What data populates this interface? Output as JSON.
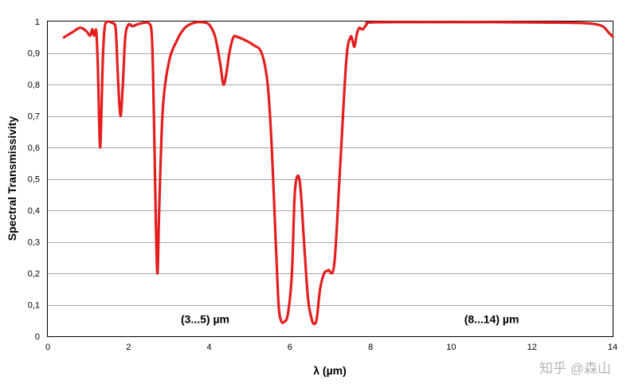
{
  "chart_data": {
    "type": "line",
    "title": "",
    "xlabel": "λ (µm)",
    "ylabel": "Spectral Transmissivity",
    "xlim": [
      0,
      14
    ],
    "ylim": [
      0,
      1
    ],
    "x_ticks": [
      0,
      2,
      4,
      6,
      8,
      10,
      12,
      14
    ],
    "x_tick_labels": [
      "0",
      "2",
      "4",
      "6",
      "8",
      "10",
      "12",
      "14"
    ],
    "y_ticks": [
      0,
      0.1,
      0.2,
      0.3,
      0.4,
      0.5,
      0.6,
      0.7,
      0.8,
      0.9,
      1
    ],
    "y_tick_labels": [
      "0",
      "0,1",
      "0,2",
      "0,3",
      "0,4",
      "0,5",
      "0,6",
      "0,7",
      "0,8",
      "0,9",
      "1"
    ],
    "grid": "horizontal",
    "line_color": "#e41e1e",
    "annotations": [
      {
        "text": "(3...5) µm",
        "x": 3.9,
        "y": 0.055
      },
      {
        "text": "(8...14) µm",
        "x": 11.0,
        "y": 0.055
      }
    ],
    "watermark": "知乎 @森山",
    "series": [
      {
        "x": [
          0.4,
          0.6,
          0.8,
          0.95,
          1.05,
          1.1,
          1.15,
          1.2,
          1.24,
          1.27,
          1.3,
          1.33,
          1.37,
          1.42,
          1.5,
          1.6,
          1.68,
          1.74,
          1.8,
          1.86,
          1.92,
          2.0,
          2.1,
          2.2,
          2.35,
          2.5,
          2.58,
          2.63,
          2.68,
          2.72,
          2.76,
          2.85,
          3.0,
          3.2,
          3.4,
          3.6,
          3.8,
          4.0,
          4.15,
          4.28,
          4.35,
          4.42,
          4.5,
          4.6,
          4.72,
          4.9,
          5.1,
          5.3,
          5.45,
          5.55,
          5.65,
          5.72,
          5.78,
          5.85,
          5.95,
          6.05,
          6.12,
          6.2,
          6.27,
          6.35,
          6.45,
          6.55,
          6.62,
          6.67,
          6.75,
          6.85,
          6.95,
          7.1,
          7.25,
          7.4,
          7.5,
          7.55,
          7.6,
          7.66,
          7.72,
          7.8,
          7.9,
          8.0,
          9.0,
          10.0,
          11.0,
          12.0,
          13.0,
          13.5,
          13.75,
          13.9,
          14.0
        ],
        "values": [
          0.95,
          0.965,
          0.98,
          0.97,
          0.955,
          0.975,
          0.955,
          0.97,
          0.86,
          0.7,
          0.6,
          0.72,
          0.9,
          0.99,
          1.0,
          0.995,
          0.98,
          0.82,
          0.7,
          0.8,
          0.95,
          0.99,
          0.985,
          0.99,
          0.995,
          0.995,
          0.95,
          0.7,
          0.35,
          0.2,
          0.4,
          0.72,
          0.87,
          0.94,
          0.98,
          0.995,
          0.998,
          0.99,
          0.95,
          0.86,
          0.8,
          0.83,
          0.9,
          0.95,
          0.95,
          0.94,
          0.925,
          0.9,
          0.8,
          0.6,
          0.3,
          0.1,
          0.05,
          0.045,
          0.07,
          0.2,
          0.45,
          0.51,
          0.46,
          0.3,
          0.12,
          0.05,
          0.04,
          0.06,
          0.15,
          0.2,
          0.21,
          0.23,
          0.55,
          0.88,
          0.95,
          0.94,
          0.92,
          0.96,
          0.98,
          0.975,
          0.99,
          0.997,
          0.998,
          0.998,
          0.998,
          0.997,
          0.996,
          0.993,
          0.985,
          0.965,
          0.952
        ]
      }
    ]
  }
}
